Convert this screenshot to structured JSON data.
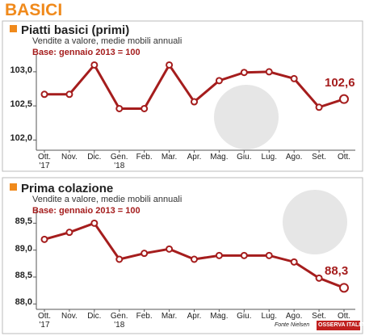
{
  "title": "BASICI",
  "chart_data": [
    {
      "type": "line",
      "title": "Piatti basici (primi)",
      "subtitle": "Vendite a valore, medie mobili annuali",
      "note": "Base: gennaio 2013 = 100",
      "categories": [
        "Ott.\n'17",
        "Nov.",
        "Dic.",
        "Gen.\n'18",
        "Feb.",
        "Mar.",
        "Apr.",
        "Mag.",
        "Giu.",
        "Lug.",
        "Ago.",
        "Set.",
        "Ott."
      ],
      "series": [
        {
          "color": "#a51d1d",
          "values": [
            102.67,
            102.67,
            103.1,
            102.46,
            102.46,
            103.1,
            102.56,
            102.87,
            102.99,
            103.0,
            102.9,
            102.48,
            102.6
          ],
          "value_labels": [
            null,
            null,
            null,
            null,
            null,
            null,
            null,
            null,
            null,
            null,
            null,
            null,
            "102,6"
          ]
        }
      ],
      "ylim": [
        101.85,
        103.2
      ],
      "yticks": [
        {
          "value": 102,
          "label": "102,0"
        },
        {
          "value": 102.5,
          "label": "102,5"
        },
        {
          "value": 103,
          "label": "103,0"
        }
      ]
    },
    {
      "type": "line",
      "title": "Prima colazione",
      "subtitle": "Vendite a valore, medie mobili annuali",
      "note": "Base: gennaio 2013 = 100",
      "categories": [
        "Ott.\n'17",
        "Nov.",
        "Dic.",
        "Gen.\n'18",
        "Feb.",
        "Mar.",
        "Apr.",
        "Mag.",
        "Giu.",
        "Lug.",
        "Ago.",
        "Set.",
        "Ott."
      ],
      "series": [
        {
          "color": "#a51d1d",
          "values": [
            89.2,
            89.33,
            89.5,
            88.83,
            88.94,
            89.02,
            88.83,
            88.9,
            88.9,
            88.9,
            88.78,
            88.48,
            88.3
          ],
          "value_labels": [
            null,
            null,
            null,
            null,
            null,
            null,
            null,
            null,
            null,
            null,
            null,
            null,
            "88,3"
          ]
        }
      ],
      "ylim": [
        87.9,
        89.7
      ],
      "yticks": [
        {
          "value": 88,
          "label": "88,0"
        },
        {
          "value": 88.5,
          "label": "88,5"
        },
        {
          "value": 89,
          "label": "89,0"
        },
        {
          "value": 89.5,
          "label": "89,5"
        }
      ]
    }
  ],
  "source": "Fonte Nielsen",
  "logo": "OSSERVA ITALIA"
}
